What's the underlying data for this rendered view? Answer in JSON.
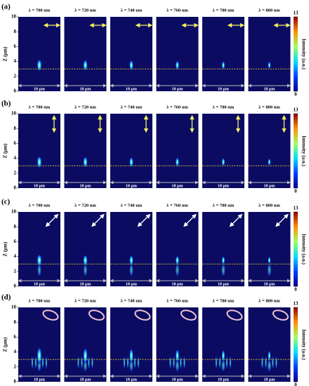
{
  "figure": {
    "y_label": "Z (μm)",
    "ylim": [
      0,
      10
    ],
    "yticks": [
      0,
      2,
      4,
      6,
      8,
      10
    ],
    "dashed_line_z": 3,
    "scale_bar": "10 μm",
    "colorbar": {
      "label": "Intensity (a.u.)",
      "lim": [
        0,
        13
      ],
      "ticks": [
        13,
        0
      ]
    },
    "rows": [
      {
        "label": "(a)",
        "panels": [
          "λ = 700 nm",
          "λ = 720 nm",
          "λ = 740 nm",
          "λ = 760 nm",
          "λ = 780 nm",
          "λ = 800 nm"
        ]
      },
      {
        "label": "(b)",
        "panels": [
          "λ = 700 nm",
          "λ = 720 nm",
          "λ = 740 nm",
          "λ = 760 nm",
          "λ = 780 nm",
          "λ = 800 nm"
        ]
      },
      {
        "label": "(c)",
        "panels": [
          "λ = 700 nm",
          "λ = 720 nm",
          "λ = 740 nm",
          "λ = 760 nm",
          "λ = 780 nm",
          "λ = 800 nm"
        ]
      },
      {
        "label": "(d)",
        "panels": [
          "λ = 700 nm",
          "λ = 720 nm",
          "λ = 740 nm",
          "λ = 760 nm",
          "λ = 780 nm",
          "λ = 800 nm"
        ]
      }
    ]
  }
}
